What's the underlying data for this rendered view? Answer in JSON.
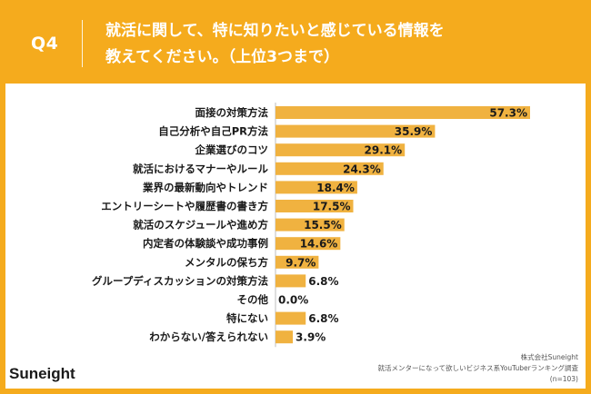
{
  "header": {
    "question_number": "Q4",
    "title_line1": "就活に関して、特に知りたいと感じている情報を",
    "title_line2": "教えてください。（上位3つまで）"
  },
  "brand": {
    "logo_text": "Suneight"
  },
  "source": {
    "line1": "株式会社Suneight",
    "line2": "就活メンターになって欲しいビジネス系YouTuberランキング調査",
    "line3": "(n=103)"
  },
  "colors": {
    "background": "#f5ab1d",
    "bar": "#f0b240",
    "panel": "#ffffff"
  },
  "chart_data": {
    "type": "bar",
    "orientation": "horizontal",
    "title": "就活に関して、特に知りたいと感じている情報を教えてください。（上位3つまで）",
    "categories": [
      "面接の対策方法",
      "自己分析や自己PR方法",
      "企業選びのコツ",
      "就活におけるマナーやルール",
      "業界の最新動向やトレンド",
      "エントリーシートや履歴書の書き方",
      "就活のスケジュールや進め方",
      "内定者の体験談や成功事例",
      "メンタルの保ち方",
      "グループディスカッションの対策方法",
      "その他",
      "特にない",
      "わからない/答えられない"
    ],
    "values": [
      57.3,
      35.9,
      29.1,
      24.3,
      18.4,
      17.5,
      15.5,
      14.6,
      9.7,
      6.8,
      0.0,
      6.8,
      3.9
    ],
    "value_labels": [
      "57.3%",
      "35.9%",
      "29.1%",
      "24.3%",
      "18.4%",
      "17.5%",
      "15.5%",
      "14.6%",
      "9.7%",
      "6.8%",
      "0.0%",
      "6.8%",
      "3.9%"
    ],
    "unit": "%",
    "xlim": [
      0,
      60
    ]
  }
}
